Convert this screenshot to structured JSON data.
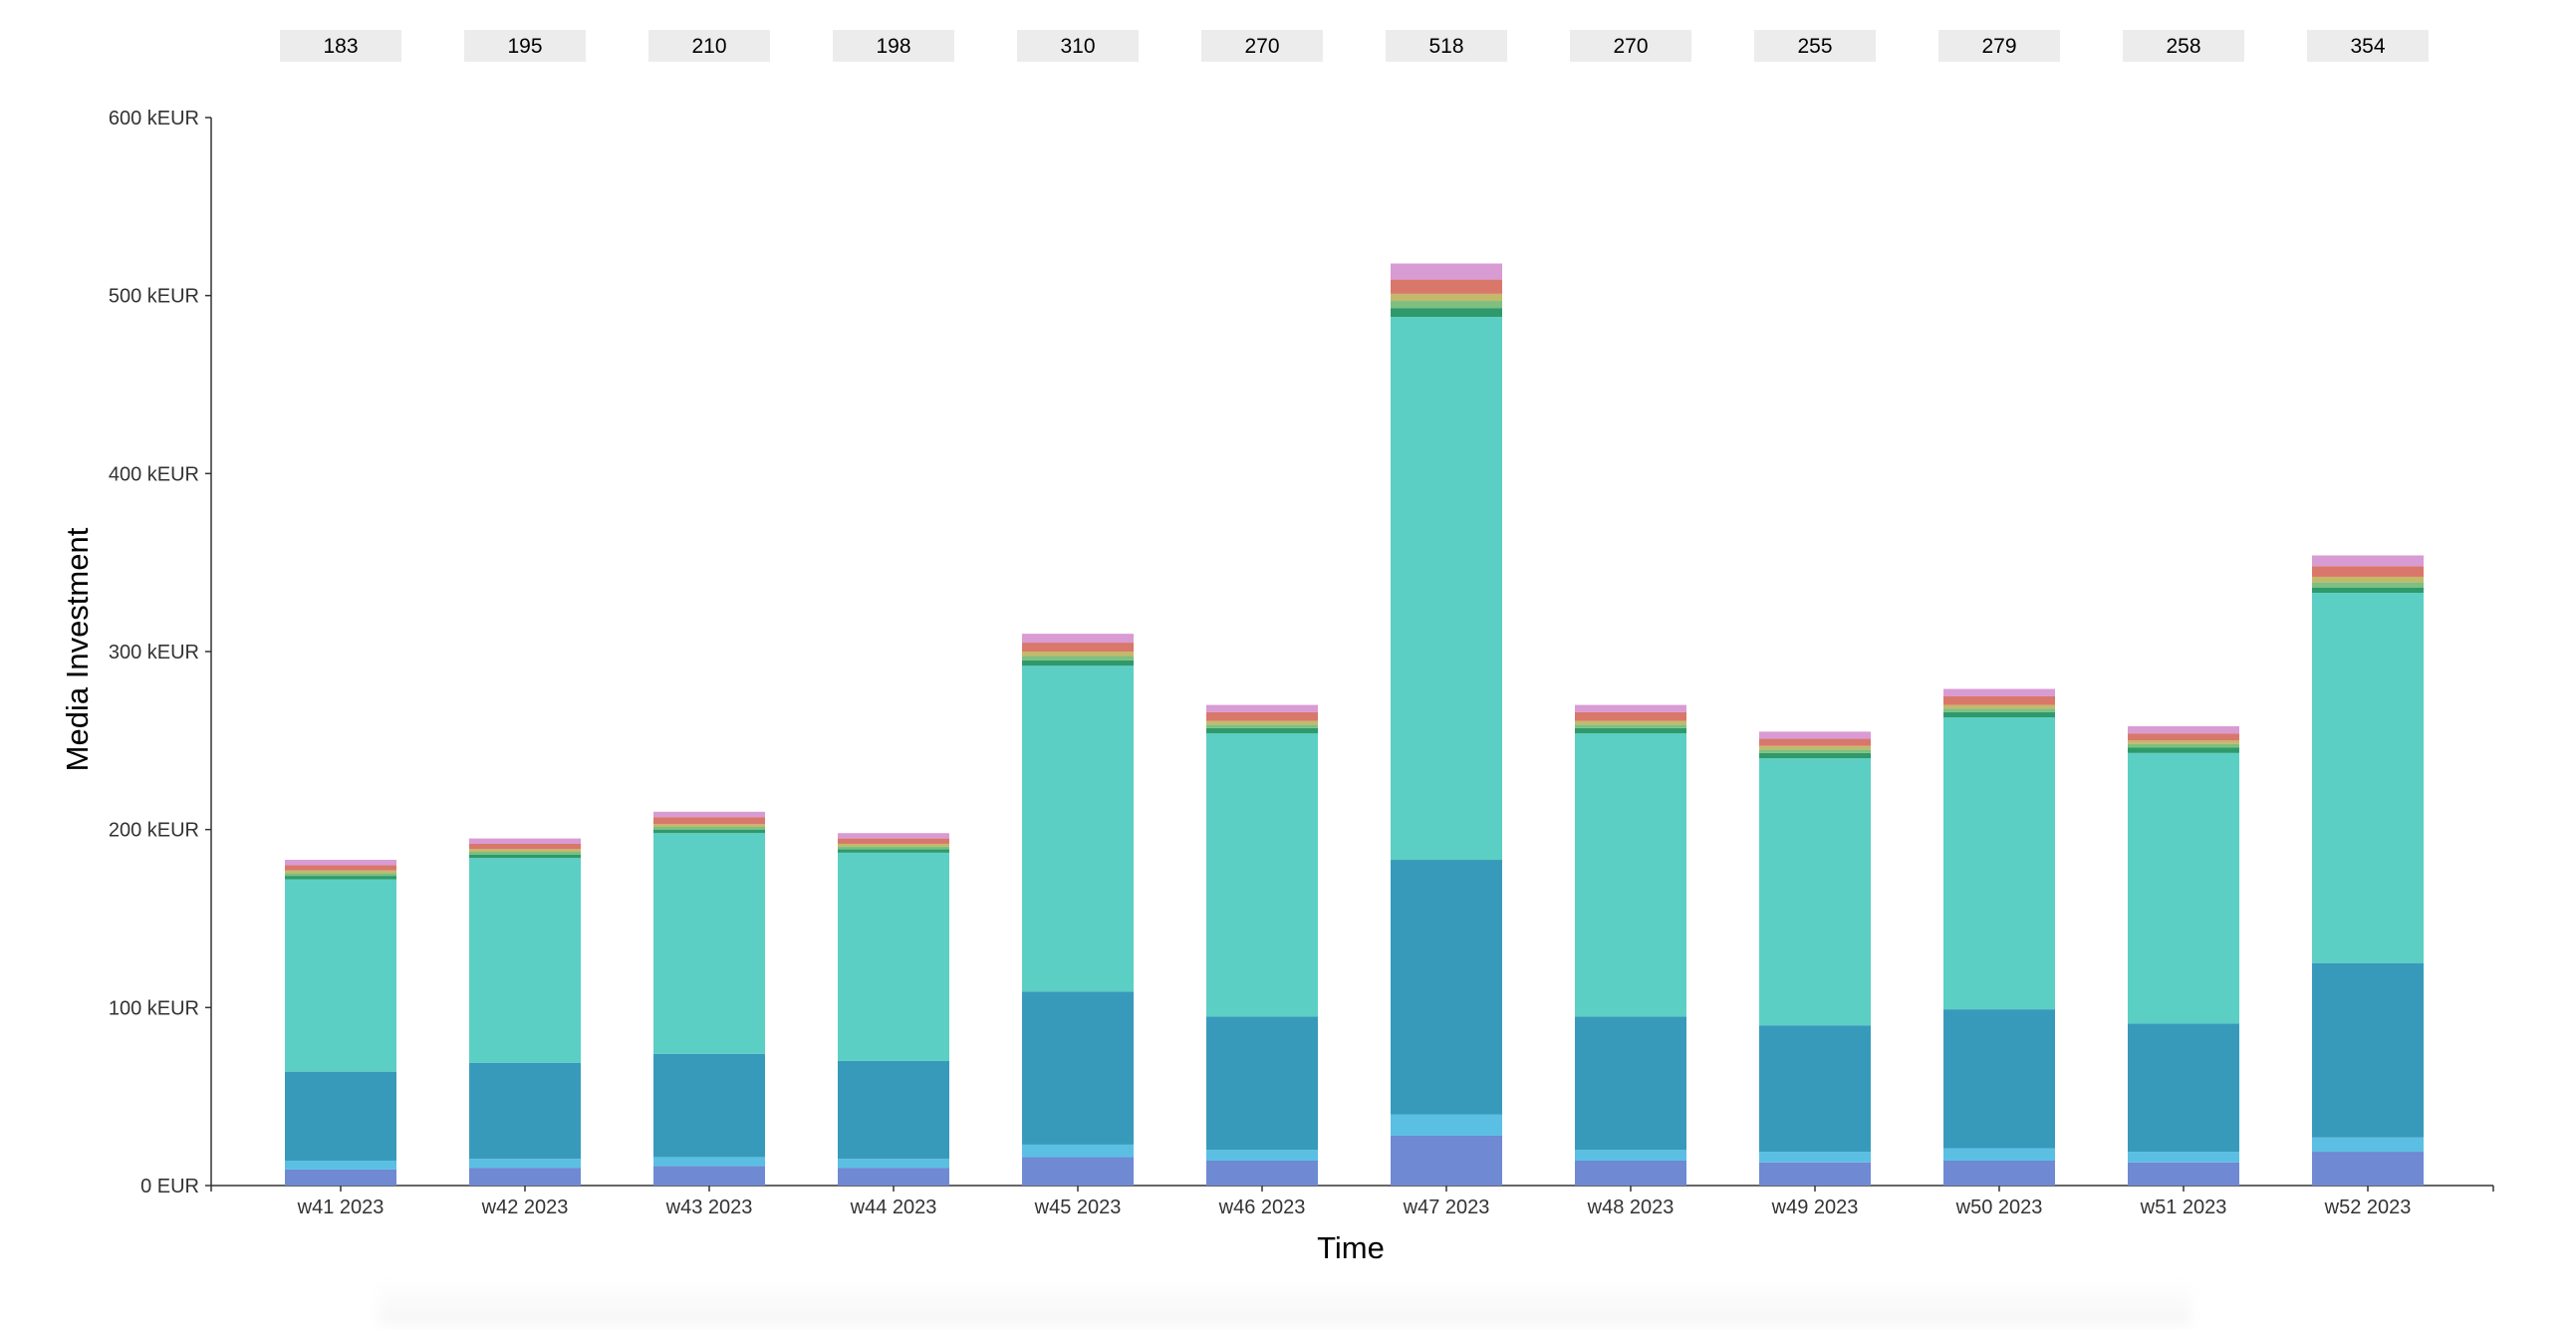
{
  "chart_data": {
    "type": "bar",
    "stacked": true,
    "title": "",
    "xlabel": "Time",
    "ylabel": "Media Investment",
    "ylim": [
      0,
      600
    ],
    "yticks": [
      0,
      100,
      200,
      300,
      400,
      500,
      600
    ],
    "ytick_labels": [
      "0 EUR",
      "100 kEUR",
      "200 kEUR",
      "300 kEUR",
      "400 kEUR",
      "500 kEUR",
      "600 kEUR"
    ],
    "grid": false,
    "legend": "none",
    "categories": [
      "w41 2023",
      "w42 2023",
      "w43 2023",
      "w44 2023",
      "w45 2023",
      "w46 2023",
      "w47 2023",
      "w48 2023",
      "w49 2023",
      "w50 2023",
      "w51 2023",
      "w52 2023"
    ],
    "totals": [
      "183",
      "195",
      "210",
      "198",
      "310",
      "270",
      "518",
      "270",
      "255",
      "279",
      "258",
      "354"
    ],
    "series": [
      {
        "color": "#6f89d3",
        "values": [
          9,
          10,
          11,
          10,
          16,
          14,
          28,
          14,
          13,
          14,
          13,
          19
        ]
      },
      {
        "color": "#5bbfe3",
        "values": [
          5,
          5,
          5,
          5,
          7,
          6,
          12,
          6,
          6,
          7,
          6,
          8
        ]
      },
      {
        "color": "#379abb",
        "values": [
          50,
          54,
          58,
          55,
          86,
          75,
          143,
          75,
          71,
          78,
          72,
          98
        ]
      },
      {
        "color": "#5bcfc4",
        "values": [
          108,
          115,
          124,
          117,
          183,
          159,
          305,
          159,
          150,
          164,
          152,
          208
        ]
      },
      {
        "color": "#2e9a6b",
        "values": [
          2,
          2,
          2,
          2,
          3,
          3,
          5,
          3,
          3,
          3,
          3,
          3
        ]
      },
      {
        "color": "#7fbf7f",
        "values": [
          1.5,
          1.5,
          1.5,
          1.5,
          2.5,
          2,
          4,
          2,
          2,
          2,
          2,
          3
        ]
      },
      {
        "color": "#c4b96b",
        "values": [
          1.5,
          1.5,
          1.5,
          1.5,
          2.5,
          2,
          4,
          2,
          2,
          2,
          2,
          3
        ]
      },
      {
        "color": "#d9776b",
        "values": [
          3,
          3,
          4,
          3,
          5,
          5,
          8,
          5,
          4,
          5,
          4,
          6
        ]
      },
      {
        "color": "#d89bd4",
        "values": [
          3,
          3,
          3,
          3,
          5,
          4,
          9,
          4,
          4,
          4,
          4,
          6
        ]
      }
    ]
  }
}
